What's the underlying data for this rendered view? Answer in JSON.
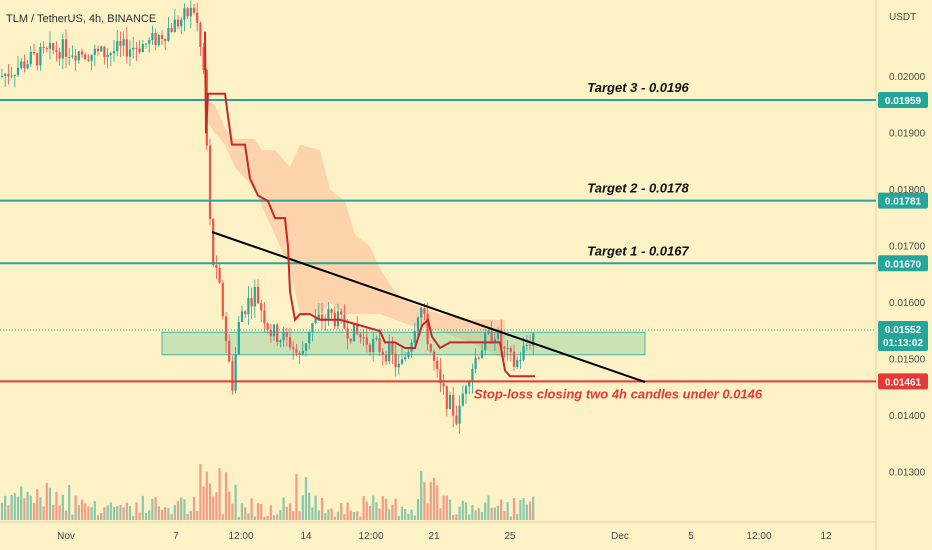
{
  "header": {
    "symbol": "TLM / TetherUS, 4h, BINANCE",
    "currency": "USDT"
  },
  "chart_data": {
    "type": "candlestick",
    "y_range": [
      0.0123,
      0.0215
    ],
    "y_ticks": [
      "0.02000",
      "0.01900",
      "0.01800",
      "0.01700",
      "0.01600",
      "0.01500",
      "0.01400",
      "0.01300"
    ],
    "x_labels": [
      "Nov",
      "7",
      "12:00",
      "14",
      "12:00",
      "21",
      "25",
      "Dec",
      "5",
      "12:00",
      "12"
    ],
    "levels": [
      {
        "name": "Target 3",
        "label": "Target 3 - 0.0196",
        "value": 0.01959,
        "badge": "0.01959",
        "color": "#26a69a"
      },
      {
        "name": "Target 2",
        "label": "Target 2 - 0.0178",
        "value": 0.01781,
        "badge": "0.01781",
        "color": "#26a69a"
      },
      {
        "name": "Target 1",
        "label": "Target 1 - 0.0167",
        "value": 0.0167,
        "badge": "0.01670",
        "color": "#26a69a"
      },
      {
        "name": "Stop-loss",
        "label": "Stop-loss closing two 4h candles under 0.0146",
        "value": 0.01461,
        "badge": "0.01461",
        "color": "#e53935"
      }
    ],
    "current_price": {
      "value": "0.01552",
      "countdown": "01:13:02",
      "color": "#26a69a"
    },
    "support_zone": {
      "low": 0.01508,
      "high": 0.01548
    },
    "colors": {
      "up": "#26a69a",
      "down": "#ef5350",
      "trend": "#c62828",
      "band": "#fbc8a0"
    }
  }
}
